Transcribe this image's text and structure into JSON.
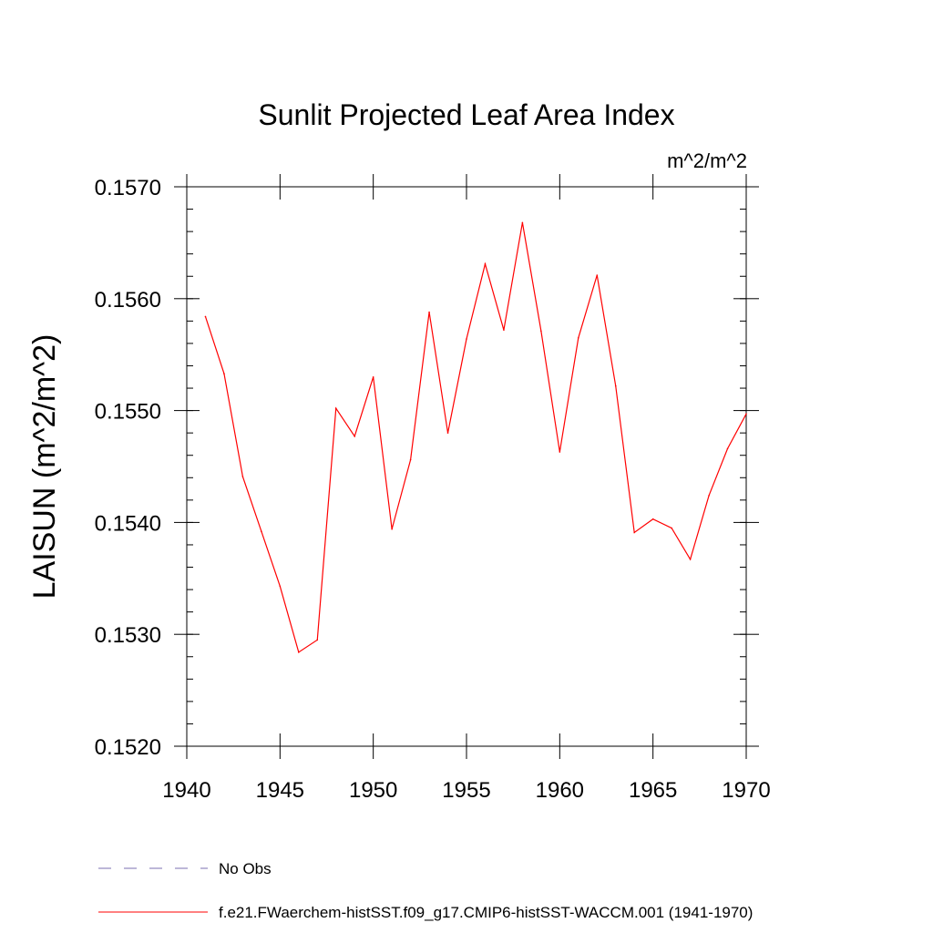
{
  "chart_data": {
    "type": "line",
    "title": "Sunlit Projected Leaf Area Index",
    "units": "m^2/m^2",
    "ylabel": "LAISUN  (m^2/m^2)",
    "xlabel": "",
    "xlim": [
      1940,
      1970
    ],
    "ylim": [
      0.152,
      0.157
    ],
    "x_ticks": [
      "1940",
      "1945",
      "1950",
      "1955",
      "1960",
      "1965",
      "1970"
    ],
    "y_ticks": [
      "0.1520",
      "0.1530",
      "0.1540",
      "0.1550",
      "0.1560",
      "0.1570"
    ],
    "grid": false,
    "series": [
      {
        "name": "f.e21.FWaerchem-histSST.f09_g17.CMIP6-histSST-WACCM.001 (1941-1970)",
        "color": "#ff0000",
        "style": "solid",
        "x": [
          1941,
          1942,
          1943,
          1944,
          1945,
          1946,
          1947,
          1948,
          1949,
          1950,
          1951,
          1952,
          1953,
          1954,
          1955,
          1956,
          1957,
          1958,
          1959,
          1960,
          1961,
          1962,
          1963,
          1964,
          1965,
          1966,
          1967,
          1968,
          1969,
          1970
        ],
        "values": [
          0.15584,
          0.15533,
          0.15441,
          0.15392,
          0.15343,
          0.15284,
          0.15295,
          0.15502,
          0.15477,
          0.1553,
          0.15394,
          0.15456,
          0.15588,
          0.1548,
          0.15564,
          0.15631,
          0.15572,
          0.15668,
          0.15571,
          0.15463,
          0.15565,
          0.15621,
          0.15522,
          0.15391,
          0.15403,
          0.15395,
          0.15367,
          0.15424,
          0.15466,
          0.15497
        ]
      }
    ],
    "legend": {
      "placement": "bottom-left",
      "entries": [
        {
          "label": "No Obs",
          "color": "#7b6fb0",
          "style": "dashed"
        },
        {
          "label": "f.e21.FWaerchem-histSST.f09_g17.CMIP6-histSST-WACCM.001 (1941-1970)",
          "color": "#ff0000",
          "style": "solid"
        }
      ]
    }
  }
}
